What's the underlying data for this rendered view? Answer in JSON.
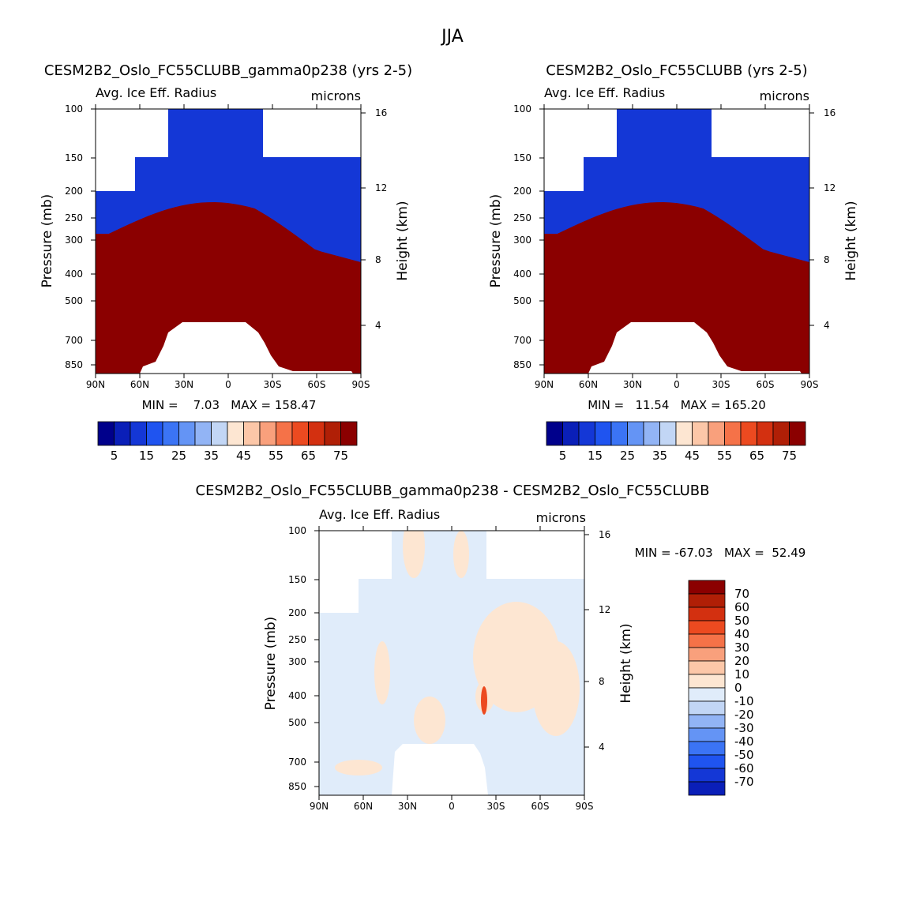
{
  "page_title": "JJA",
  "chart_data": [
    {
      "type": "heatmap",
      "title": "CESM2B2_Oslo_FC55CLUBB_gamma0p238 (yrs 2-5)",
      "left_subtitle": "Avg. Ice Eff. Radius",
      "right_subtitle": "microns",
      "ylabel": "Pressure (mb)",
      "ylabel_right": "Height (km)",
      "x_ticks": [
        "90N",
        "60N",
        "30N",
        "0",
        "30S",
        "60S",
        "90S"
      ],
      "y_ticks": [
        "100",
        "150",
        "200",
        "250",
        "300",
        "400",
        "500",
        "700",
        "850"
      ],
      "y_right_ticks": [
        "16",
        "12",
        "8",
        "4"
      ],
      "stats": "MIN =    7.03   MAX = 158.47",
      "colorbar_labels": [
        "5",
        "15",
        "25",
        "35",
        "45",
        "55",
        "65",
        "75"
      ],
      "colorbar_levels": [
        5,
        10,
        15,
        20,
        25,
        30,
        35,
        40,
        45,
        50,
        55,
        60,
        65,
        70,
        75
      ]
    },
    {
      "type": "heatmap",
      "title": "CESM2B2_Oslo_FC55CLUBB (yrs 2-5)",
      "left_subtitle": "Avg. Ice Eff. Radius",
      "right_subtitle": "microns",
      "ylabel": "Pressure (mb)",
      "ylabel_right": "Height (km)",
      "x_ticks": [
        "90N",
        "60N",
        "30N",
        "0",
        "30S",
        "60S",
        "90S"
      ],
      "y_ticks": [
        "100",
        "150",
        "200",
        "250",
        "300",
        "400",
        "500",
        "700",
        "850"
      ],
      "y_right_ticks": [
        "16",
        "12",
        "8",
        "4"
      ],
      "stats": "MIN =   11.54   MAX = 165.20",
      "colorbar_labels": [
        "5",
        "15",
        "25",
        "35",
        "45",
        "55",
        "65",
        "75"
      ],
      "colorbar_levels": [
        5,
        10,
        15,
        20,
        25,
        30,
        35,
        40,
        45,
        50,
        55,
        60,
        65,
        70,
        75
      ]
    },
    {
      "type": "heatmap",
      "title": "CESM2B2_Oslo_FC55CLUBB_gamma0p238 - CESM2B2_Oslo_FC55CLUBB",
      "left_subtitle": "Avg. Ice Eff. Radius",
      "right_subtitle": "microns",
      "ylabel": "Pressure (mb)",
      "ylabel_right": "Height (km)",
      "x_ticks": [
        "90N",
        "60N",
        "30N",
        "0",
        "30S",
        "60S",
        "90S"
      ],
      "y_ticks": [
        "100",
        "150",
        "200",
        "250",
        "300",
        "400",
        "500",
        "700",
        "850"
      ],
      "y_right_ticks": [
        "16",
        "12",
        "8",
        "4"
      ],
      "stats": "MIN = -67.03   MAX =  52.49",
      "colorbar_labels": [
        "70",
        "60",
        "50",
        "40",
        "30",
        "20",
        "10",
        "0",
        "-10",
        "-20",
        "-30",
        "-40",
        "-50",
        "-60",
        "-70"
      ],
      "colorbar_levels": [
        70,
        60,
        50,
        40,
        30,
        20,
        10,
        0,
        -10,
        -20,
        -30,
        -40,
        -50,
        -60,
        -70
      ]
    }
  ],
  "palette": [
    "#00008b",
    "#0a1fb8",
    "#1437d6",
    "#1f54f0",
    "#3b74f5",
    "#6494f5",
    "#92b4f5",
    "#c2d6f5",
    "#e0ecfa",
    "#fde6d2",
    "#fcc7a8",
    "#f9a07c",
    "#f57248",
    "#ec4a20",
    "#d33010",
    "#b01f06",
    "#8b0000"
  ]
}
